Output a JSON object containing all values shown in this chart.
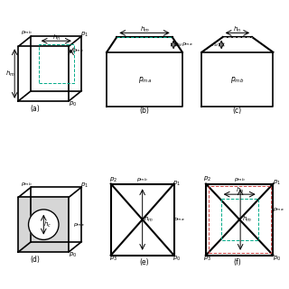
{
  "bg_color": "#ffffff",
  "line_color": "#000000",
  "dashed_color_green": "#00aa88",
  "dashed_color_red": "#cc4444",
  "gray_fill": "#bbbbbb",
  "panel_labels": [
    "(a)",
    "(b)",
    "(c)",
    "(d)",
    "(e)",
    "(f)"
  ]
}
